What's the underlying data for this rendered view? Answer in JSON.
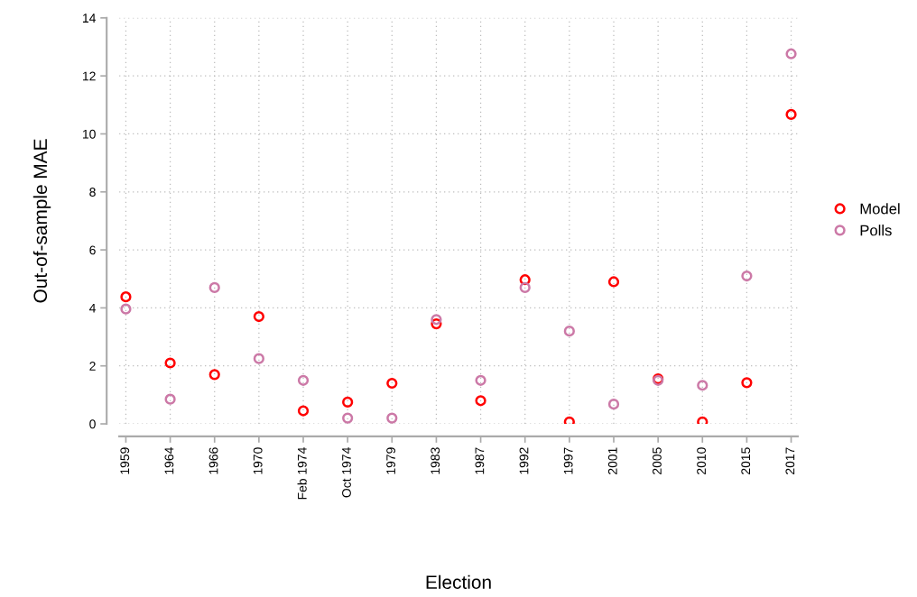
{
  "chart_data": {
    "type": "scatter",
    "xlabel": "Election",
    "ylabel": "Out-of-sample MAE",
    "categories": [
      "1959",
      "1964",
      "1966",
      "1970",
      "Feb 1974",
      "Oct 1974",
      "1979",
      "1983",
      "1987",
      "1992",
      "1997",
      "2001",
      "2005",
      "2010",
      "2015",
      "2017"
    ],
    "series": [
      {
        "name": "Model",
        "color": "#ff0000",
        "values": [
          4.38,
          2.1,
          1.7,
          3.7,
          0.45,
          0.75,
          1.4,
          3.45,
          0.8,
          4.97,
          0.07,
          4.9,
          1.55,
          0.07,
          1.42,
          10.67
        ]
      },
      {
        "name": "Polls",
        "color": "#cc79a7",
        "values": [
          3.96,
          0.85,
          4.7,
          2.25,
          1.5,
          0.2,
          0.2,
          3.6,
          1.5,
          4.7,
          3.2,
          0.68,
          1.5,
          1.33,
          5.1,
          12.76
        ]
      }
    ],
    "ylim": [
      0,
      14
    ],
    "yticks": [
      0,
      2,
      4,
      6,
      8,
      10,
      12,
      14
    ],
    "grid": true,
    "legend": "right",
    "marker": "circle"
  }
}
